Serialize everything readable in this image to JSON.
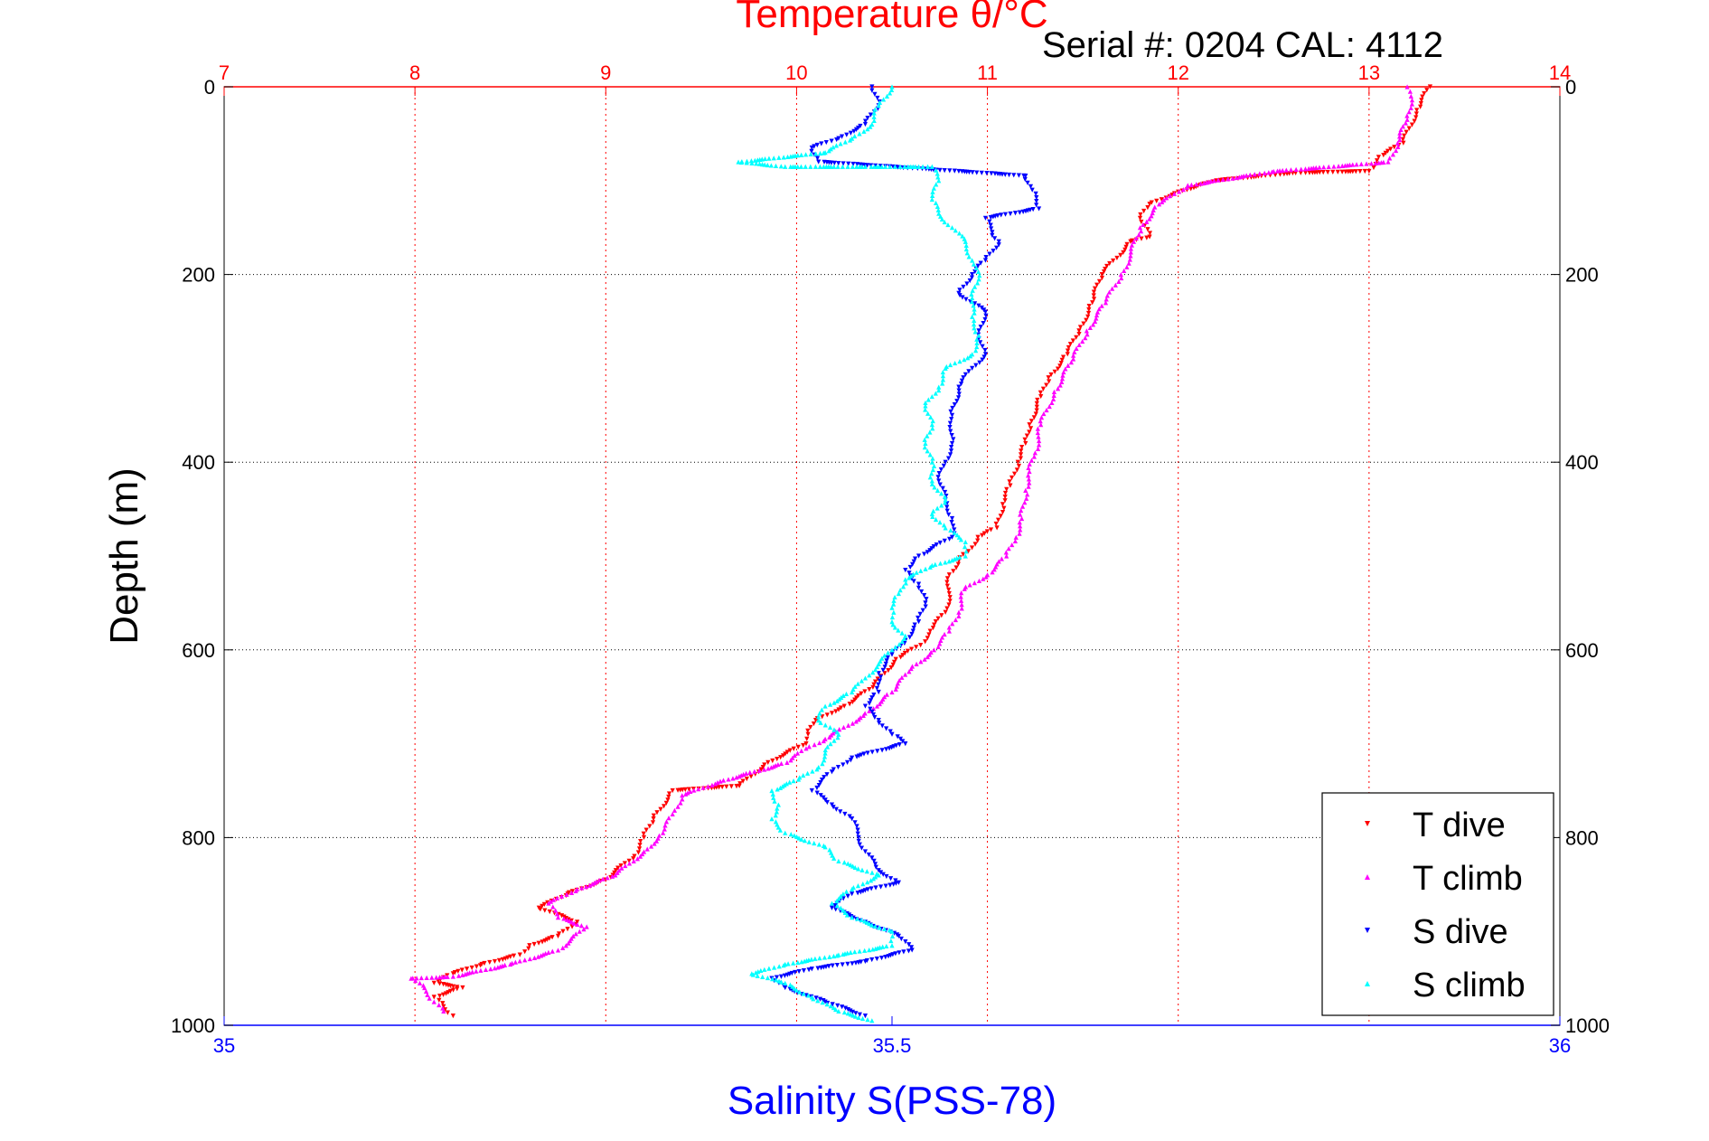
{
  "chart_data": {
    "type": "scatter",
    "title": "Temperature θ/°C",
    "subtitle": "Serial #: 0204  CAL: 4112",
    "xlabel": "Salinity S(PSS-78)",
    "ylabel": "Depth (m)",
    "top_axis": {
      "label": "Temperature θ/°C",
      "range": [
        7,
        14
      ],
      "ticks": [
        "7",
        "8",
        "9",
        "10",
        "11",
        "12",
        "13",
        "14"
      ],
      "color": "#ff0000"
    },
    "bottom_axis": {
      "label": "Salinity S(PSS-78)",
      "range": [
        35,
        36
      ],
      "ticks": [
        "35",
        "35.5",
        "36"
      ],
      "color": "#0000ff"
    },
    "y_axis": {
      "range": [
        0,
        1000
      ],
      "reversed": true,
      "ticks": [
        "0",
        "200",
        "400",
        "600",
        "800",
        "1000"
      ]
    },
    "grid": true,
    "legend_position": "bottom-right",
    "series": [
      {
        "name": "T dive",
        "axis": "temperature",
        "color": "#ff0000",
        "marker": "triangle-down",
        "points": [
          [
            13.32,
            0
          ],
          [
            13.25,
            25
          ],
          [
            13.18,
            60
          ],
          [
            13.05,
            75
          ],
          [
            13.0,
            90
          ],
          [
            12.6,
            92
          ],
          [
            12.2,
            100
          ],
          [
            12.0,
            112
          ],
          [
            11.85,
            125
          ],
          [
            11.8,
            140
          ],
          [
            11.85,
            160
          ],
          [
            11.75,
            165
          ],
          [
            11.6,
            200
          ],
          [
            11.55,
            230
          ],
          [
            11.48,
            260
          ],
          [
            11.42,
            285
          ],
          [
            11.32,
            310
          ],
          [
            11.28,
            330
          ],
          [
            11.22,
            360
          ],
          [
            11.2,
            380
          ],
          [
            11.16,
            400
          ],
          [
            11.12,
            425
          ],
          [
            11.08,
            445
          ],
          [
            11.05,
            470
          ],
          [
            10.95,
            480
          ],
          [
            10.9,
            495
          ],
          [
            10.85,
            505
          ],
          [
            10.8,
            520
          ],
          [
            10.8,
            540
          ],
          [
            10.78,
            560
          ],
          [
            10.7,
            580
          ],
          [
            10.65,
            595
          ],
          [
            10.52,
            610
          ],
          [
            10.4,
            640
          ],
          [
            10.25,
            660
          ],
          [
            10.1,
            675
          ],
          [
            10.06,
            690
          ],
          [
            10.05,
            700
          ],
          [
            9.85,
            720
          ],
          [
            9.7,
            745
          ],
          [
            9.35,
            750
          ],
          [
            9.25,
            780
          ],
          [
            9.2,
            800
          ],
          [
            9.15,
            820
          ],
          [
            9.0,
            845
          ],
          [
            8.8,
            860
          ],
          [
            8.65,
            875
          ],
          [
            8.85,
            890
          ],
          [
            8.75,
            905
          ],
          [
            8.6,
            915
          ],
          [
            8.55,
            925
          ],
          [
            8.35,
            935
          ],
          [
            8.2,
            945
          ],
          [
            8.1,
            955
          ],
          [
            8.25,
            960
          ],
          [
            8.1,
            970
          ],
          [
            8.15,
            980
          ],
          [
            8.2,
            990
          ]
        ]
      },
      {
        "name": "T climb",
        "axis": "temperature",
        "color": "#ff00ff",
        "marker": "triangle-up",
        "points": [
          [
            8.15,
            985
          ],
          [
            8.1,
            975
          ],
          [
            8.05,
            960
          ],
          [
            7.98,
            950
          ],
          [
            8.2,
            948
          ],
          [
            8.5,
            935
          ],
          [
            8.75,
            920
          ],
          [
            8.9,
            895
          ],
          [
            8.75,
            885
          ],
          [
            8.7,
            870
          ],
          [
            8.85,
            855
          ],
          [
            9.05,
            840
          ],
          [
            9.2,
            815
          ],
          [
            9.3,
            795
          ],
          [
            9.35,
            775
          ],
          [
            9.4,
            755
          ],
          [
            9.6,
            740
          ],
          [
            9.95,
            720
          ],
          [
            10.05,
            705
          ],
          [
            10.15,
            695
          ],
          [
            10.35,
            670
          ],
          [
            10.5,
            645
          ],
          [
            10.6,
            620
          ],
          [
            10.72,
            600
          ],
          [
            10.8,
            580
          ],
          [
            10.85,
            560
          ],
          [
            10.88,
            535
          ],
          [
            11.0,
            520
          ],
          [
            11.1,
            500
          ],
          [
            11.15,
            480
          ],
          [
            11.18,
            460
          ],
          [
            11.2,
            430
          ],
          [
            11.22,
            410
          ],
          [
            11.25,
            390
          ],
          [
            11.28,
            360
          ],
          [
            11.35,
            325
          ],
          [
            11.45,
            290
          ],
          [
            11.52,
            260
          ],
          [
            11.62,
            230
          ],
          [
            11.7,
            200
          ],
          [
            11.75,
            180
          ],
          [
            11.8,
            150
          ],
          [
            11.9,
            125
          ],
          [
            12.05,
            105
          ],
          [
            12.5,
            90
          ],
          [
            13.1,
            80
          ],
          [
            13.15,
            60
          ],
          [
            13.2,
            35
          ],
          [
            13.22,
            10
          ],
          [
            13.2,
            0
          ]
        ]
      },
      {
        "name": "S dive",
        "axis": "salinity",
        "color": "#0000ff",
        "marker": "triangle-down",
        "points": [
          [
            35.485,
            0
          ],
          [
            35.49,
            20
          ],
          [
            35.48,
            40
          ],
          [
            35.46,
            55
          ],
          [
            35.44,
            65
          ],
          [
            35.445,
            80
          ],
          [
            35.6,
            95
          ],
          [
            35.605,
            110
          ],
          [
            35.61,
            130
          ],
          [
            35.57,
            140
          ],
          [
            35.575,
            155
          ],
          [
            35.58,
            165
          ],
          [
            35.57,
            185
          ],
          [
            35.56,
            200
          ],
          [
            35.55,
            220
          ],
          [
            35.57,
            240
          ],
          [
            35.565,
            260
          ],
          [
            35.57,
            285
          ],
          [
            35.56,
            300
          ],
          [
            35.55,
            320
          ],
          [
            35.545,
            350
          ],
          [
            35.545,
            380
          ],
          [
            35.54,
            400
          ],
          [
            35.535,
            420
          ],
          [
            35.54,
            440
          ],
          [
            35.545,
            460
          ],
          [
            35.545,
            480
          ],
          [
            35.52,
            500
          ],
          [
            35.51,
            515
          ],
          [
            35.52,
            530
          ],
          [
            35.525,
            550
          ],
          [
            35.52,
            570
          ],
          [
            35.51,
            590
          ],
          [
            35.5,
            605
          ],
          [
            35.49,
            625
          ],
          [
            35.49,
            645
          ],
          [
            35.48,
            660
          ],
          [
            35.49,
            675
          ],
          [
            35.5,
            690
          ],
          [
            35.51,
            700
          ],
          [
            35.47,
            715
          ],
          [
            35.455,
            730
          ],
          [
            35.44,
            750
          ],
          [
            35.455,
            765
          ],
          [
            35.47,
            780
          ],
          [
            35.475,
            800
          ],
          [
            35.48,
            815
          ],
          [
            35.49,
            835
          ],
          [
            35.505,
            848
          ],
          [
            35.47,
            860
          ],
          [
            35.455,
            875
          ],
          [
            35.48,
            890
          ],
          [
            35.505,
            905
          ],
          [
            35.515,
            920
          ],
          [
            35.48,
            932
          ],
          [
            35.44,
            940
          ],
          [
            35.41,
            950
          ],
          [
            35.42,
            960
          ],
          [
            35.45,
            975
          ],
          [
            35.48,
            990
          ]
        ]
      },
      {
        "name": "S climb",
        "axis": "salinity",
        "color": "#00ffff",
        "marker": "triangle-up",
        "points": [
          [
            35.485,
            995
          ],
          [
            35.46,
            985
          ],
          [
            35.44,
            970
          ],
          [
            35.42,
            955
          ],
          [
            35.395,
            945
          ],
          [
            35.42,
            935
          ],
          [
            35.46,
            925
          ],
          [
            35.5,
            915
          ],
          [
            35.5,
            900
          ],
          [
            35.47,
            885
          ],
          [
            35.455,
            870
          ],
          [
            35.47,
            855
          ],
          [
            35.49,
            840
          ],
          [
            35.46,
            825
          ],
          [
            35.45,
            810
          ],
          [
            35.42,
            795
          ],
          [
            35.41,
            780
          ],
          [
            35.415,
            765
          ],
          [
            35.41,
            750
          ],
          [
            35.43,
            738
          ],
          [
            35.445,
            725
          ],
          [
            35.45,
            710
          ],
          [
            35.46,
            690
          ],
          [
            35.445,
            675
          ],
          [
            35.45,
            660
          ],
          [
            35.47,
            645
          ],
          [
            35.48,
            630
          ],
          [
            35.49,
            615
          ],
          [
            35.5,
            600
          ],
          [
            35.51,
            585
          ],
          [
            35.5,
            570
          ],
          [
            35.5,
            555
          ],
          [
            35.505,
            540
          ],
          [
            35.51,
            525
          ],
          [
            35.53,
            510
          ],
          [
            35.555,
            500
          ],
          [
            35.555,
            485
          ],
          [
            35.54,
            470
          ],
          [
            35.53,
            455
          ],
          [
            35.54,
            440
          ],
          [
            35.53,
            420
          ],
          [
            35.53,
            400
          ],
          [
            35.525,
            380
          ],
          [
            35.53,
            360
          ],
          [
            35.525,
            340
          ],
          [
            35.535,
            320
          ],
          [
            35.54,
            300
          ],
          [
            35.56,
            285
          ],
          [
            35.565,
            265
          ],
          [
            35.56,
            245
          ],
          [
            35.56,
            225
          ],
          [
            35.565,
            205
          ],
          [
            35.56,
            185
          ],
          [
            35.555,
            165
          ],
          [
            35.545,
            150
          ],
          [
            35.535,
            135
          ],
          [
            35.53,
            120
          ],
          [
            35.535,
            100
          ],
          [
            35.53,
            85
          ],
          [
            35.48,
            85
          ],
          [
            35.42,
            85
          ],
          [
            35.385,
            80
          ],
          [
            35.45,
            70
          ],
          [
            35.47,
            55
          ],
          [
            35.485,
            40
          ],
          [
            35.49,
            20
          ],
          [
            35.5,
            0
          ]
        ]
      }
    ]
  }
}
